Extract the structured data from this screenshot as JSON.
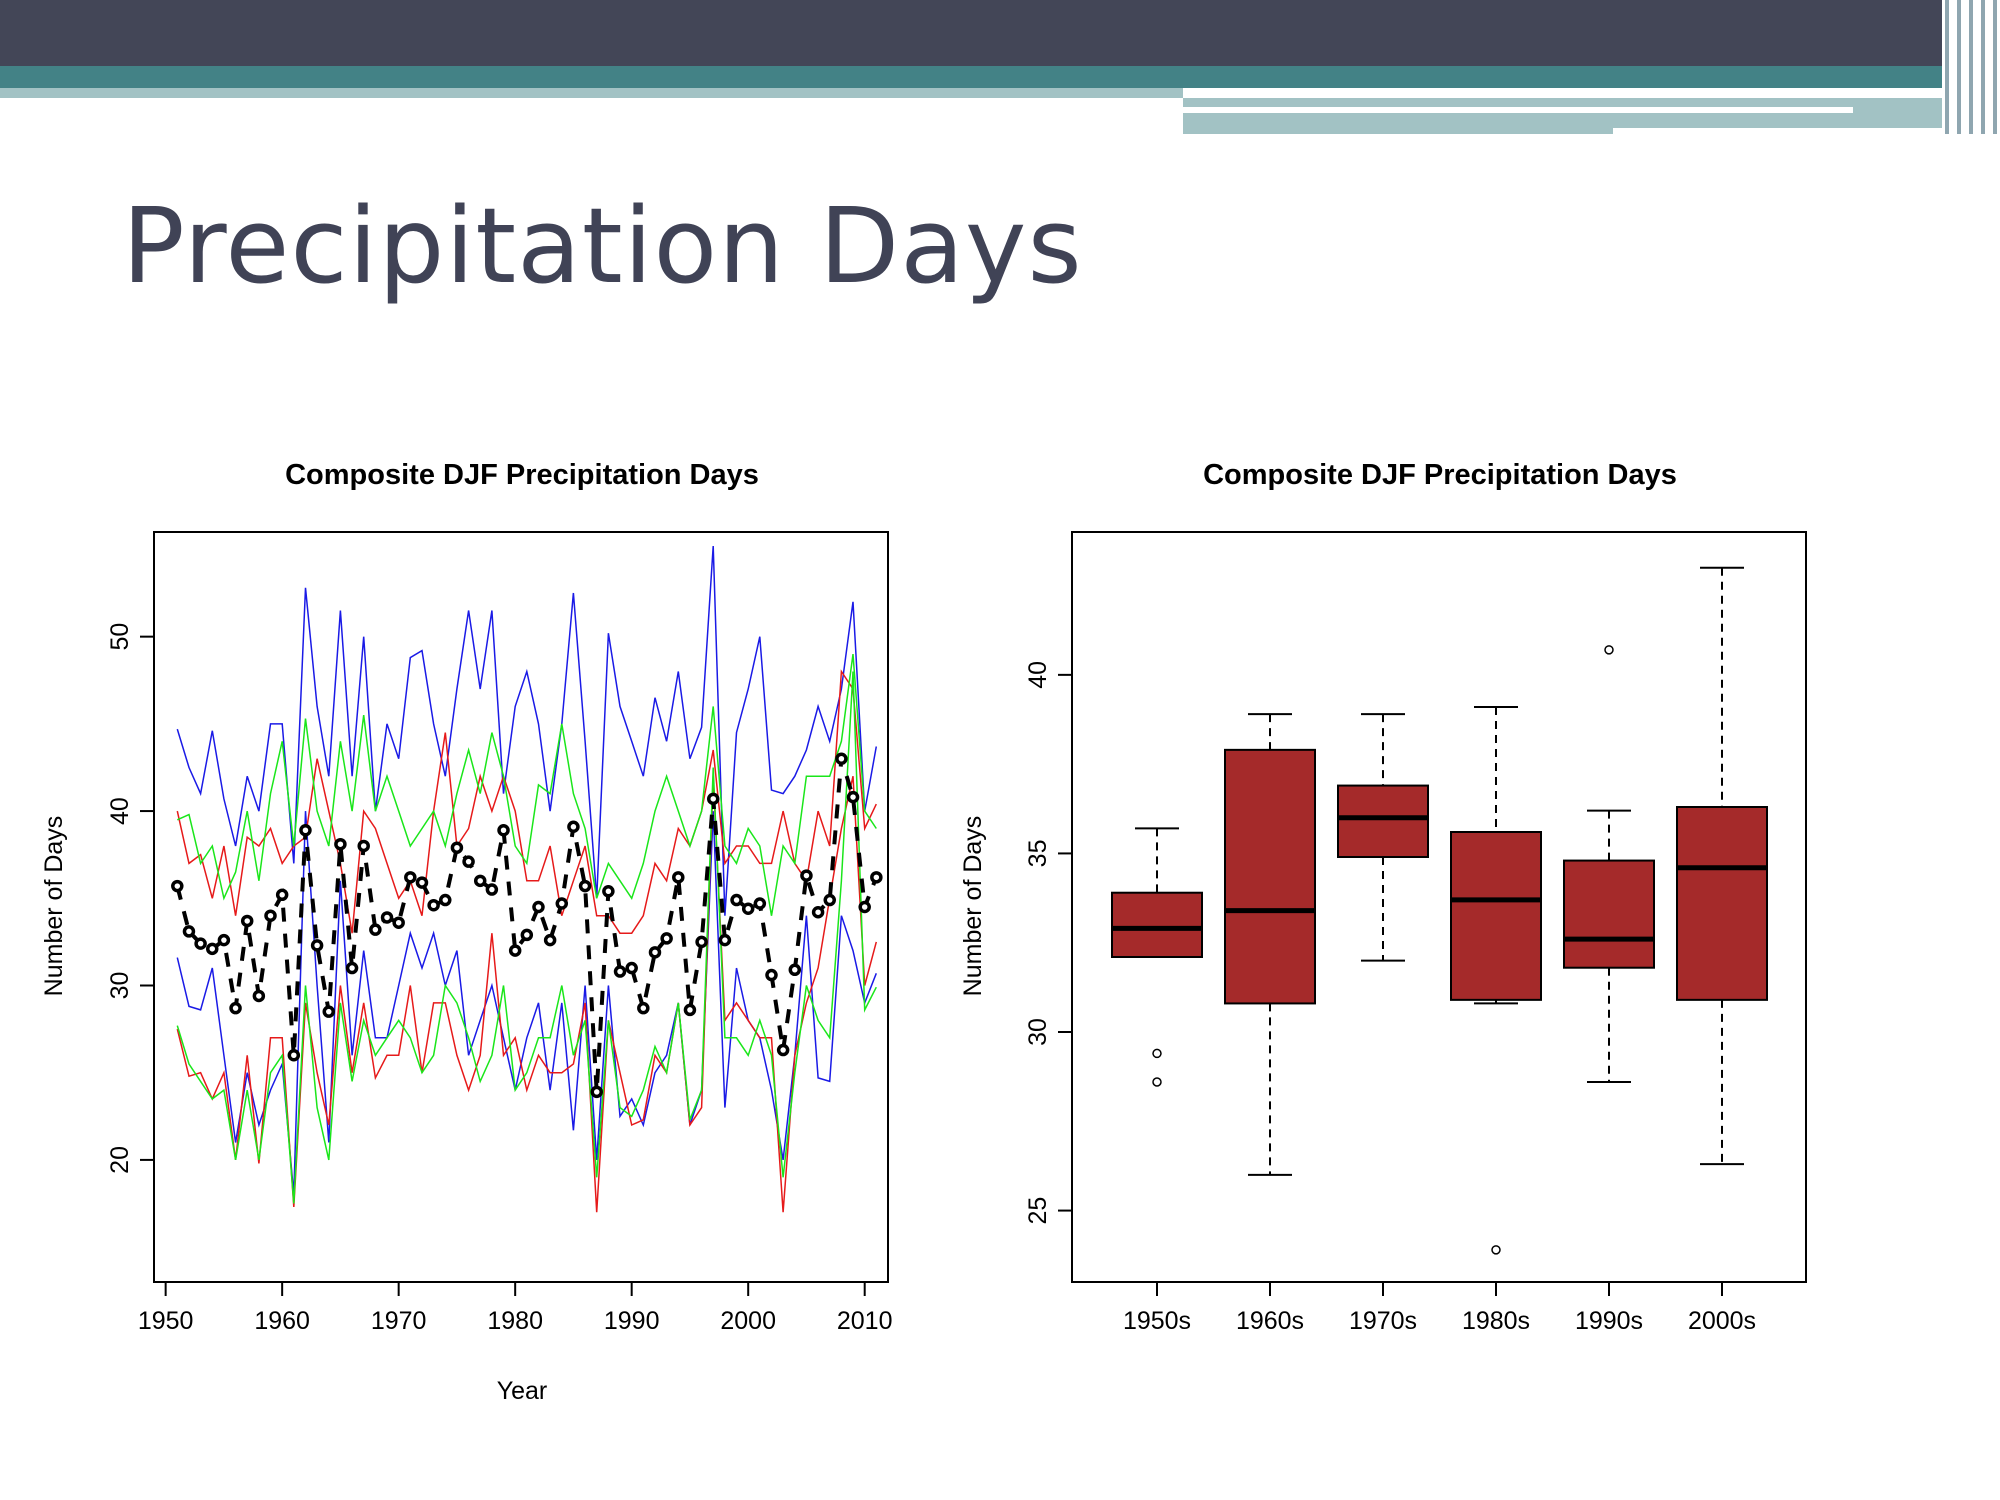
{
  "slide": {
    "title": "Precipitation Days",
    "theme_colors": {
      "dark": "#434657",
      "teal": "#438286",
      "light_teal": "#a2c2c4"
    }
  },
  "chart_data": [
    {
      "type": "line",
      "title": "Composite DJF Precipitation Days",
      "xlabel": "Year",
      "ylabel": "Number of Days",
      "xlim": [
        1949,
        2012
      ],
      "ylim": [
        13,
        56
      ],
      "xticks": [
        1950,
        1960,
        1970,
        1980,
        1990,
        2000,
        2010
      ],
      "yticks": [
        20,
        30,
        40,
        50
      ],
      "grid": false,
      "x": [
        1951,
        1952,
        1953,
        1954,
        1955,
        1956,
        1957,
        1958,
        1959,
        1960,
        1961,
        1962,
        1963,
        1964,
        1965,
        1966,
        1967,
        1968,
        1969,
        1970,
        1971,
        1972,
        1973,
        1974,
        1975,
        1976,
        1977,
        1978,
        1979,
        1980,
        1981,
        1982,
        1983,
        1984,
        1985,
        1986,
        1987,
        1988,
        1989,
        1990,
        1991,
        1992,
        1993,
        1994,
        1995,
        1996,
        1997,
        1998,
        1999,
        2000,
        2001,
        2002,
        2003,
        2004,
        2005,
        2006,
        2007,
        2008,
        2009,
        2010,
        2011
      ],
      "series": [
        {
          "color": "#1a1ae6",
          "style": "thin",
          "values": [
            44.7,
            42.5,
            41.0,
            44.6,
            40.7,
            38.0,
            42.0,
            40.0,
            45.0,
            45.0,
            37.0,
            52.8,
            46.0,
            42.0,
            51.5,
            42.0,
            50.0,
            40.0,
            45.0,
            43.0,
            48.8,
            49.2,
            45.0,
            42.0,
            47.0,
            51.5,
            47.0,
            51.5,
            41.0,
            46.0,
            48.0,
            45.0,
            40.0,
            45.0,
            52.5,
            44.0,
            35.0,
            50.2,
            46.0,
            44.0,
            42.0,
            46.5,
            44.0,
            48.0,
            43.0,
            44.8,
            55.2,
            34.0,
            44.5,
            47.0,
            50.0,
            41.2,
            41.0,
            42.0,
            43.5,
            46.0,
            44.0,
            47.0,
            52.0,
            40.0,
            43.7
          ]
        },
        {
          "color": "#1a1ae6",
          "style": "thin",
          "values": [
            31.6,
            28.8,
            28.6,
            31.0,
            26.0,
            21.0,
            25.0,
            22.0,
            24.0,
            25.5,
            18.0,
            40.0,
            30.0,
            21.0,
            36.0,
            26.0,
            32.0,
            27.0,
            27.0,
            30.0,
            33.0,
            31.0,
            33.0,
            30.0,
            32.0,
            26.0,
            28.0,
            30.0,
            27.0,
            24.0,
            27.0,
            29.0,
            24.0,
            29.0,
            21.7,
            30.0,
            20.0,
            30.0,
            22.5,
            23.5,
            22.0,
            25.0,
            26.0,
            29.0,
            22.0,
            24.0,
            40.0,
            23.0,
            31.0,
            28.0,
            27.0,
            24.0,
            20.0,
            26.0,
            34.0,
            24.7,
            24.5,
            34.0,
            32.0,
            29.0,
            30.7
          ]
        },
        {
          "color": "#e61a1a",
          "style": "thin",
          "values": [
            40.0,
            37.0,
            37.5,
            35.0,
            38.0,
            34.0,
            38.5,
            38.0,
            39.0,
            37.0,
            38.0,
            38.5,
            43.0,
            40.0,
            37.0,
            33.0,
            40.0,
            39.0,
            37.0,
            35.0,
            36.0,
            34.0,
            40.0,
            44.5,
            38.0,
            39.0,
            42.0,
            40.0,
            42.0,
            40.0,
            36.0,
            36.0,
            38.0,
            34.0,
            36.0,
            38.0,
            34.0,
            34.0,
            33.0,
            33.0,
            34.0,
            37.0,
            36.0,
            39.0,
            38.0,
            40.0,
            43.5,
            37.0,
            38.0,
            38.0,
            37.0,
            37.0,
            40.0,
            37.0,
            36.0,
            40.0,
            38.0,
            48.0,
            47.0,
            39.0,
            40.4
          ]
        },
        {
          "color": "#e61a1a",
          "style": "thin",
          "values": [
            27.5,
            24.8,
            25.0,
            23.5,
            25.0,
            20.0,
            26.0,
            19.8,
            27.0,
            27.0,
            17.3,
            29.0,
            25.0,
            22.0,
            30.0,
            25.0,
            29.0,
            24.7,
            26.0,
            26.0,
            30.0,
            25.0,
            29.0,
            29.0,
            26.0,
            24.0,
            26.0,
            33.0,
            26.0,
            27.0,
            24.0,
            26.0,
            25.0,
            25.0,
            25.5,
            29.0,
            17.0,
            28.0,
            25.0,
            22.0,
            22.3,
            26.0,
            25.0,
            29.0,
            22.0,
            23.0,
            42.0,
            28.0,
            29.0,
            28.0,
            27.0,
            27.0,
            17.0,
            26.0,
            29.0,
            31.0,
            35.0,
            39.0,
            42.0,
            30.0,
            32.5
          ]
        },
        {
          "color": "#1ae61a",
          "style": "thin",
          "values": [
            39.5,
            39.8,
            37.0,
            38.0,
            35.0,
            36.5,
            40.0,
            36.0,
            41.0,
            44.0,
            38.0,
            45.3,
            40.0,
            38.0,
            44.0,
            40.0,
            45.5,
            40.0,
            42.0,
            40.0,
            38.0,
            39.0,
            40.0,
            38.0,
            41.0,
            43.5,
            41.0,
            44.5,
            42.0,
            38.0,
            37.0,
            41.5,
            41.0,
            45.0,
            41.0,
            39.0,
            35.0,
            37.0,
            36.0,
            35.0,
            37.0,
            40.0,
            42.0,
            40.0,
            38.0,
            40.0,
            46.0,
            38.0,
            37.0,
            39.0,
            38.0,
            34.0,
            38.0,
            37.0,
            42.0,
            42.0,
            42.0,
            44.0,
            49.0,
            40.0,
            39.0
          ]
        },
        {
          "color": "#1ae61a",
          "style": "thin",
          "values": [
            27.7,
            25.5,
            24.5,
            23.5,
            24.0,
            20.0,
            24.0,
            20.0,
            25.0,
            26.0,
            17.5,
            30.0,
            23.0,
            20.0,
            29.0,
            24.5,
            28.0,
            26.0,
            27.0,
            28.0,
            27.0,
            25.0,
            26.0,
            30.0,
            29.0,
            27.0,
            24.5,
            26.0,
            30.0,
            24.0,
            25.0,
            27.0,
            27.0,
            30.0,
            26.0,
            28.0,
            19.0,
            28.0,
            23.0,
            22.5,
            24.0,
            26.5,
            25.0,
            29.0,
            22.3,
            24.0,
            42.5,
            27.0,
            27.0,
            26.0,
            28.0,
            26.0,
            19.0,
            25.0,
            30.0,
            28.0,
            27.0,
            36.0,
            48.0,
            28.6,
            29.9
          ]
        },
        {
          "color": "#000000",
          "style": "composite",
          "values": [
            35.7,
            33.1,
            32.4,
            32.1,
            32.6,
            28.7,
            33.7,
            29.4,
            34.0,
            35.2,
            26.0,
            38.9,
            32.3,
            28.5,
            38.1,
            31.0,
            38.0,
            33.2,
            33.9,
            33.6,
            36.2,
            35.9,
            34.6,
            34.9,
            37.9,
            37.1,
            36.0,
            35.5,
            38.9,
            32.0,
            32.9,
            34.5,
            32.6,
            34.7,
            39.1,
            35.7,
            23.9,
            35.4,
            30.8,
            31.0,
            28.7,
            31.9,
            32.7,
            36.2,
            28.6,
            32.5,
            40.7,
            32.6,
            34.9,
            34.4,
            34.7,
            30.6,
            26.3,
            30.9,
            36.3,
            34.2,
            34.9,
            43.0,
            40.8,
            34.5,
            36.2
          ]
        }
      ]
    },
    {
      "type": "box",
      "title": "Composite DJF Precipitation Days",
      "xlabel": "",
      "ylabel": "Number of Days",
      "ylim": [
        23,
        44
      ],
      "yticks": [
        25,
        30,
        35,
        40
      ],
      "grid": false,
      "box_color": "#a52a2a",
      "categories": [
        "1950s",
        "1960s",
        "1970s",
        "1980s",
        "1990s",
        "2000s"
      ],
      "boxes": [
        {
          "min": 32.1,
          "q1": 32.1,
          "median": 32.9,
          "q3": 33.9,
          "max": 35.7,
          "outliers": [
            29.4,
            28.6
          ]
        },
        {
          "min": 26.0,
          "q1": 30.8,
          "median": 33.4,
          "q3": 37.9,
          "max": 38.9,
          "outliers": []
        },
        {
          "min": 32.0,
          "q1": 34.9,
          "median": 36.0,
          "q3": 36.9,
          "max": 38.9,
          "outliers": []
        },
        {
          "min": 30.8,
          "q1": 30.9,
          "median": 33.7,
          "q3": 35.6,
          "max": 39.1,
          "outliers": [
            23.9
          ]
        },
        {
          "min": 28.6,
          "q1": 31.8,
          "median": 32.6,
          "q3": 34.8,
          "max": 36.2,
          "outliers": [
            40.7
          ]
        },
        {
          "min": 26.3,
          "q1": 30.9,
          "median": 34.6,
          "q3": 36.3,
          "max": 43.0,
          "outliers": []
        }
      ]
    }
  ]
}
